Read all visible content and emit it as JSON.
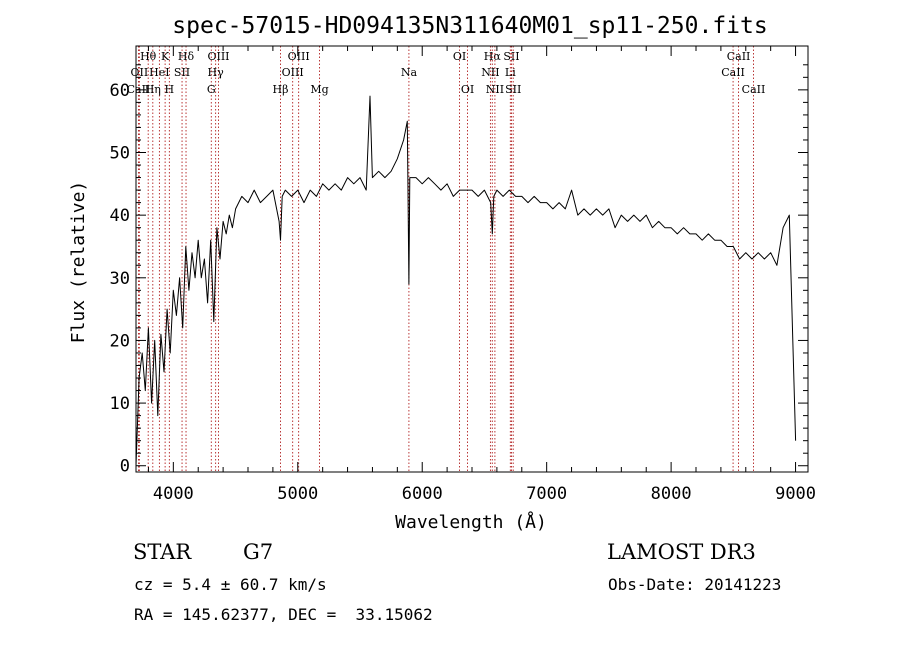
{
  "chart_data": {
    "type": "line",
    "title": "spec-57015-HD094135N311640M01_sp11-250.fits",
    "xlabel": "Wavelength (Å)",
    "ylabel": "Flux (relative)",
    "xlim": [
      3700,
      9100
    ],
    "ylim": [
      -1,
      67
    ],
    "xticks": [
      4000,
      5000,
      6000,
      7000,
      8000,
      9000
    ],
    "xtick_labels": [
      "4000",
      "5000",
      "6000",
      "7000",
      "8000",
      "9000"
    ],
    "yticks": [
      0,
      10,
      20,
      30,
      40,
      50,
      60
    ],
    "ytick_labels": [
      "0",
      "10",
      "20",
      "30",
      "40",
      "50",
      "60"
    ],
    "series": [
      {
        "name": "flux",
        "x": [
          3700,
          3725,
          3750,
          3775,
          3800,
          3825,
          3850,
          3875,
          3900,
          3925,
          3950,
          3975,
          4000,
          4025,
          4050,
          4075,
          4100,
          4125,
          4150,
          4175,
          4200,
          4225,
          4250,
          4275,
          4300,
          4325,
          4350,
          4375,
          4400,
          4425,
          4450,
          4475,
          4500,
          4550,
          4600,
          4650,
          4700,
          4750,
          4800,
          4850,
          4861,
          4875,
          4900,
          4950,
          5000,
          5050,
          5100,
          5150,
          5200,
          5250,
          5300,
          5350,
          5400,
          5450,
          5500,
          5550,
          5580,
          5600,
          5650,
          5700,
          5750,
          5800,
          5850,
          5880,
          5893,
          5900,
          5950,
          6000,
          6050,
          6100,
          6150,
          6200,
          6250,
          6300,
          6350,
          6400,
          6450,
          6500,
          6550,
          6563,
          6575,
          6600,
          6650,
          6700,
          6750,
          6800,
          6850,
          6900,
          6950,
          7000,
          7050,
          7100,
          7150,
          7200,
          7250,
          7300,
          7350,
          7400,
          7450,
          7500,
          7550,
          7600,
          7650,
          7700,
          7750,
          7800,
          7850,
          7900,
          7950,
          8000,
          8050,
          8100,
          8150,
          8200,
          8250,
          8300,
          8350,
          8400,
          8450,
          8500,
          8550,
          8600,
          8650,
          8700,
          8750,
          8800,
          8850,
          8900,
          8950,
          9000
        ],
        "values": [
          0,
          14,
          18,
          12,
          22,
          10,
          20,
          8,
          21,
          15,
          25,
          18,
          28,
          24,
          30,
          22,
          35,
          28,
          34,
          30,
          36,
          30,
          33,
          26,
          36,
          23,
          38,
          33,
          39,
          37,
          40,
          38,
          41,
          43,
          42,
          44,
          42,
          43,
          44,
          39,
          36,
          43,
          44,
          43,
          44,
          42,
          44,
          43,
          45,
          44,
          45,
          44,
          46,
          45,
          46,
          44,
          59,
          46,
          47,
          46,
          47,
          49,
          52,
          55,
          29,
          46,
          46,
          45,
          46,
          45,
          44,
          45,
          43,
          44,
          44,
          44,
          43,
          44,
          42,
          37,
          43,
          44,
          43,
          44,
          43,
          43,
          42,
          43,
          42,
          42,
          41,
          42,
          41,
          44,
          40,
          41,
          40,
          41,
          40,
          41,
          38,
          40,
          39,
          40,
          39,
          40,
          38,
          39,
          38,
          38,
          37,
          38,
          37,
          37,
          36,
          37,
          36,
          36,
          35,
          35,
          33,
          34,
          33,
          34,
          33,
          34,
          32,
          38,
          40,
          4
        ]
      }
    ],
    "lines": [
      {
        "label": "Hθ",
        "x": 3798,
        "row": 1
      },
      {
        "label": "OII",
        "x": 3727,
        "row": 2
      },
      {
        "label": "CaII",
        "x": 3720,
        "row": 3
      },
      {
        "label": "K",
        "x": 3934,
        "row": 1
      },
      {
        "label": "HeI",
        "x": 3888,
        "row": 2
      },
      {
        "label": "Hη",
        "x": 3835,
        "row": 3
      },
      {
        "label": "H",
        "x": 3968,
        "row": 3
      },
      {
        "label": "Hδ",
        "x": 4102,
        "row": 1
      },
      {
        "label": "SII",
        "x": 4070,
        "row": 2
      },
      {
        "label": "OIII",
        "x": 4363,
        "row": 1
      },
      {
        "label": "Hγ",
        "x": 4340,
        "row": 2
      },
      {
        "label": "G",
        "x": 4305,
        "row": 3
      },
      {
        "label": "OIII",
        "x": 5007,
        "row": 1
      },
      {
        "label": "OIII",
        "x": 4959,
        "row": 2
      },
      {
        "label": "Hβ",
        "x": 4861,
        "row": 3
      },
      {
        "label": "Mg",
        "x": 5175,
        "row": 3
      },
      {
        "label": "Na",
        "x": 5893,
        "row": 2
      },
      {
        "label": "OI",
        "x": 6300,
        "row": 1
      },
      {
        "label": "OI",
        "x": 6364,
        "row": 3
      },
      {
        "label": "Hα",
        "x": 6563,
        "row": 1
      },
      {
        "label": "NII",
        "x": 6548,
        "row": 2
      },
      {
        "label": "NII",
        "x": 6584,
        "row": 3
      },
      {
        "label": "SII",
        "x": 6717,
        "row": 1
      },
      {
        "label": "Li",
        "x": 6708,
        "row": 2
      },
      {
        "label": "SII",
        "x": 6731,
        "row": 3
      },
      {
        "label": "CaII",
        "x": 8542,
        "row": 1
      },
      {
        "label": "CaII",
        "x": 8498,
        "row": 2
      },
      {
        "label": "CaII",
        "x": 8662,
        "row": 3
      }
    ]
  },
  "info": {
    "class_label": "STAR",
    "subclass": "G7",
    "survey": "LAMOST DR3",
    "redshift": "cz = 5.4 ± 60.7 km/s",
    "obs_date": "Obs-Date: 20141223",
    "coordinates": "RA = 145.62377, DEC =  33.15062"
  }
}
